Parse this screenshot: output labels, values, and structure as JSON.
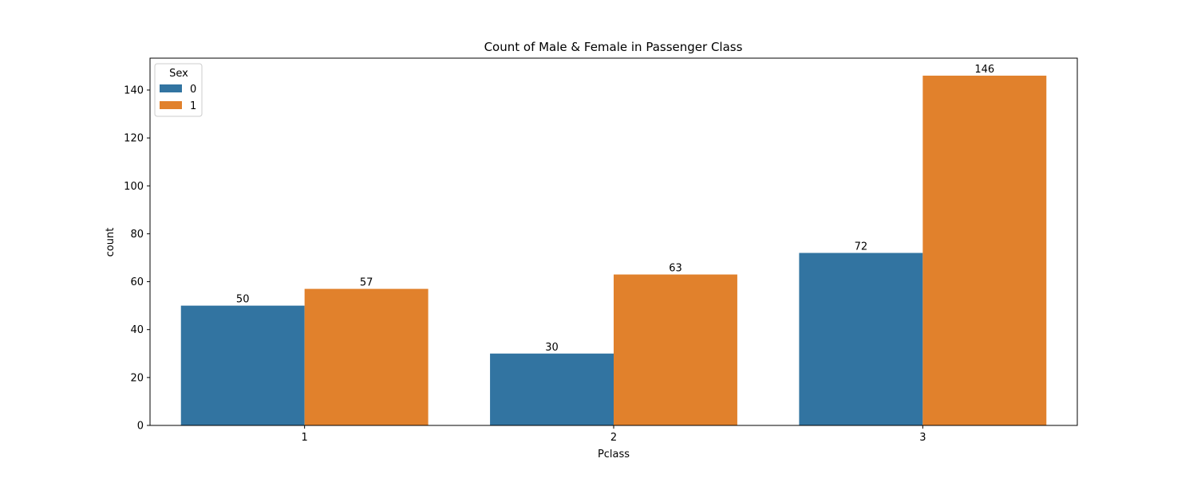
{
  "chart_data": {
    "type": "bar",
    "title": "Count of Male & Female in Passenger Class",
    "xlabel": "Pclass",
    "ylabel": "count",
    "categories": [
      "1",
      "2",
      "3"
    ],
    "series": [
      {
        "name": "0",
        "color": "#3274a1",
        "values": [
          50,
          30,
          72
        ]
      },
      {
        "name": "1",
        "color": "#e1812c",
        "values": [
          57,
          63,
          146
        ]
      }
    ],
    "ylim": [
      0,
      153.3
    ],
    "yticks": [
      0,
      20,
      40,
      60,
      80,
      100,
      120,
      140
    ],
    "legend": {
      "title": "Sex",
      "position": "top-left"
    },
    "grid": false,
    "data_labels": true
  }
}
